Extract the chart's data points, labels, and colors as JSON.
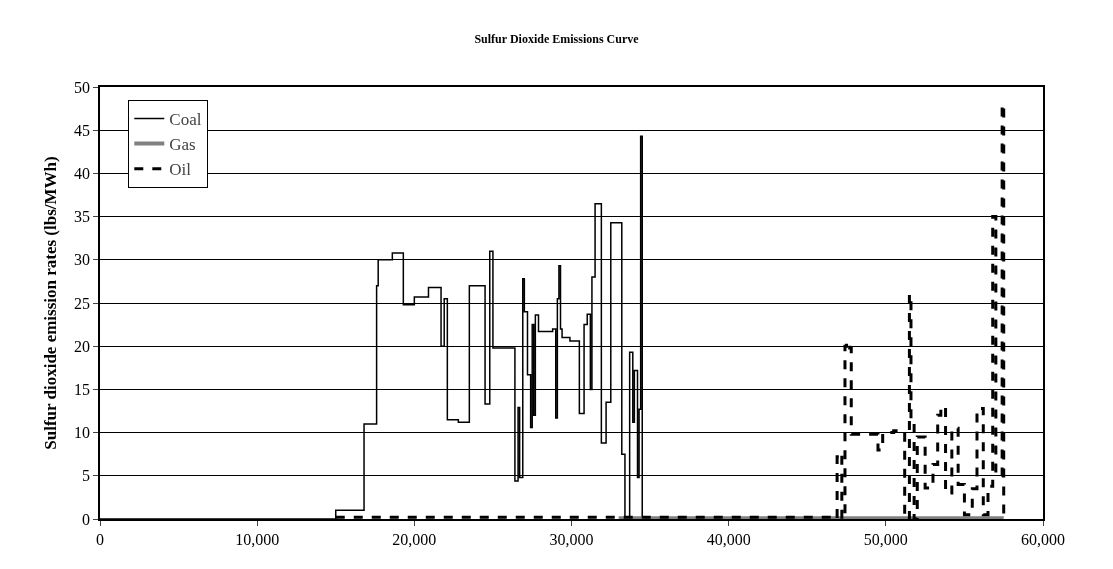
{
  "chart_data": {
    "type": "step",
    "title": "Sulfur Dioxide Emissions Curve",
    "ylabel": "Sulfur dioxide emission rates (lbs/MWh)",
    "xlim": [
      0,
      60000
    ],
    "xticks": [
      {
        "value": 0,
        "label": "0"
      },
      {
        "value": 10000,
        "label": "10,000"
      },
      {
        "value": 20000,
        "label": "20,000"
      },
      {
        "value": 30000,
        "label": "30,000"
      },
      {
        "value": 40000,
        "label": "40,000"
      },
      {
        "value": 50000,
        "label": "50,000"
      },
      {
        "value": 60000,
        "label": "60,000"
      }
    ],
    "ylim": [
      0,
      50
    ],
    "yticks": [
      0,
      5,
      10,
      15,
      20,
      25,
      30,
      35,
      40,
      45,
      50
    ],
    "grid": "y",
    "legend": "top left",
    "marker": "none",
    "series": [
      {
        "name": "Coal",
        "color": "#000000",
        "line_style": "solid",
        "x": [
          0,
          15000,
          16800,
          17600,
          17700,
          18600,
          19300,
          20000,
          20900,
          21700,
          21900,
          22100,
          22800,
          23500,
          24500,
          24800,
          25000,
          26400,
          26600,
          26700,
          26900,
          27000,
          27200,
          27400,
          27500,
          27600,
          27700,
          27900,
          28800,
          29000,
          29100,
          29200,
          29300,
          29400,
          29900,
          30500,
          30800,
          31000,
          31200,
          31300,
          31500,
          31900,
          32100,
          32200,
          32500,
          33200,
          33300,
          33400,
          33700,
          33900,
          34000,
          34200,
          34300,
          34400,
          34500,
          34600,
          40000
        ],
        "values": [
          0,
          1,
          11,
          27,
          30,
          30.8,
          24.8,
          25.7,
          26.8,
          20,
          25.5,
          11.5,
          11.2,
          27,
          13.3,
          31,
          19.8,
          4.4,
          12.9,
          4.8,
          27.8,
          24,
          16.7,
          10.6,
          22.5,
          12,
          23.6,
          21.7,
          22,
          11.7,
          25.5,
          29.3,
          22,
          21,
          20.6,
          12.2,
          22.5,
          23.7,
          15,
          28,
          36.5,
          8.8,
          8.8,
          13.5,
          34.3,
          7.5,
          7.5,
          0,
          19.3,
          11.2,
          17.2,
          4.8,
          12.7,
          44.3,
          0,
          0,
          0
        ]
      },
      {
        "name": "Gas",
        "color": "#808080",
        "line_style": "solid",
        "x": [
          33000,
          57500
        ],
        "values": [
          0.1,
          0.1
        ]
      },
      {
        "name": "Oil",
        "color": "#000000",
        "line_style": "dashed",
        "x": [
          15000,
          33800,
          46800,
          46900,
          47100,
          47200,
          47400,
          47500,
          47700,
          47800,
          49000,
          49500,
          49800,
          50500,
          51000,
          51200,
          51500,
          51600,
          51800,
          52000,
          52500,
          53000,
          53300,
          53500,
          53800,
          54200,
          54600,
          55000,
          55500,
          55800,
          56200,
          56500,
          56800,
          57000,
          57400,
          57500
        ],
        "values": [
          0.2,
          0.2,
          0,
          7.2,
          7.6,
          0,
          20,
          20.5,
          19.8,
          9.8,
          9.8,
          8,
          10,
          10.2,
          10,
          0,
          26,
          11,
          0,
          9.5,
          3.6,
          6.3,
          12,
          13,
          3,
          10.5,
          4,
          0.5,
          3.5,
          12.8,
          0.5,
          3.8,
          35,
          5,
          48,
          0
        ]
      }
    ]
  }
}
